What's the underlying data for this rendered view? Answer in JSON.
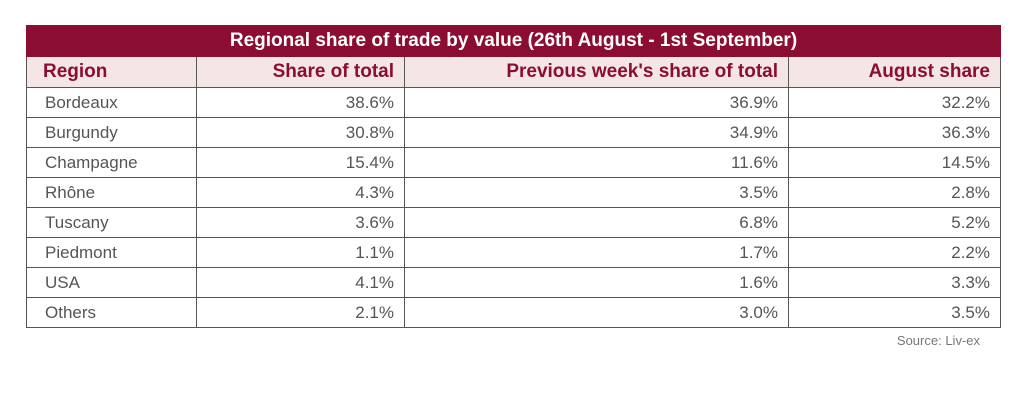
{
  "table": {
    "title": "Regional share of trade by value (26th August - 1st September)",
    "columns": [
      "Region",
      "Share of total",
      "Previous week's share of total",
      "August share"
    ],
    "rows": [
      [
        "Bordeaux",
        "38.6%",
        "36.9%",
        "32.2%"
      ],
      [
        "Burgundy",
        "30.8%",
        "34.9%",
        "36.3%"
      ],
      [
        "Champagne",
        "15.4%",
        "11.6%",
        "14.5%"
      ],
      [
        "Rhône",
        "4.3%",
        "3.5%",
        "2.8%"
      ],
      [
        "Tuscany",
        "3.6%",
        "6.8%",
        "5.2%"
      ],
      [
        "Piedmont",
        "1.1%",
        "1.7%",
        "2.2%"
      ],
      [
        "USA",
        "4.1%",
        "1.6%",
        "3.3%"
      ],
      [
        "Others",
        "2.1%",
        "3.0%",
        "3.5%"
      ]
    ]
  },
  "source": "Source: Liv-ex",
  "colors": {
    "title_background": "#8c0d32",
    "header_background": "#f5e6e6",
    "header_text": "#8c0d32",
    "cell_text": "#555555",
    "border": "#555555"
  }
}
